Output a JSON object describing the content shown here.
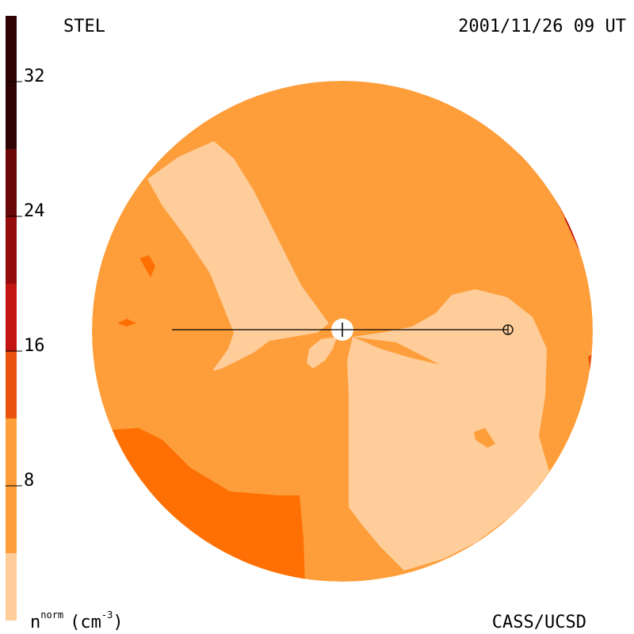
{
  "header": {
    "left_label": "STEL",
    "right_label": "2001/11/26 09 UT"
  },
  "footer": {
    "unit_label": {
      "base": "n",
      "sup": "norm",
      "unit_open": "(cm",
      "unit_sup": "-3",
      "unit_close": ")"
    },
    "credit": "CASS/UCSD"
  },
  "colorbar": {
    "tick_labels": [
      "32",
      "24",
      "16",
      "8"
    ],
    "levels": [
      {
        "color": "#fecd9a"
      },
      {
        "color": "#fe9e3a"
      },
      {
        "color": "#fe7004"
      },
      {
        "color": "#e8540e"
      },
      {
        "color": "#c21512"
      },
      {
        "color": "#960c0c"
      },
      {
        "color": "#6a0707"
      },
      {
        "color": "#2f0303"
      }
    ]
  },
  "colors": {
    "disk_base": "#fe9e3a",
    "low_density": "#fecd9a",
    "medium_density": "#fe7004",
    "high_density": "#e8540e",
    "peak_density": "#c21512",
    "line": "#000000",
    "sun": "#ffffff"
  },
  "symbols": {
    "sun": "sun-icon",
    "earth": "earth-icon"
  }
}
